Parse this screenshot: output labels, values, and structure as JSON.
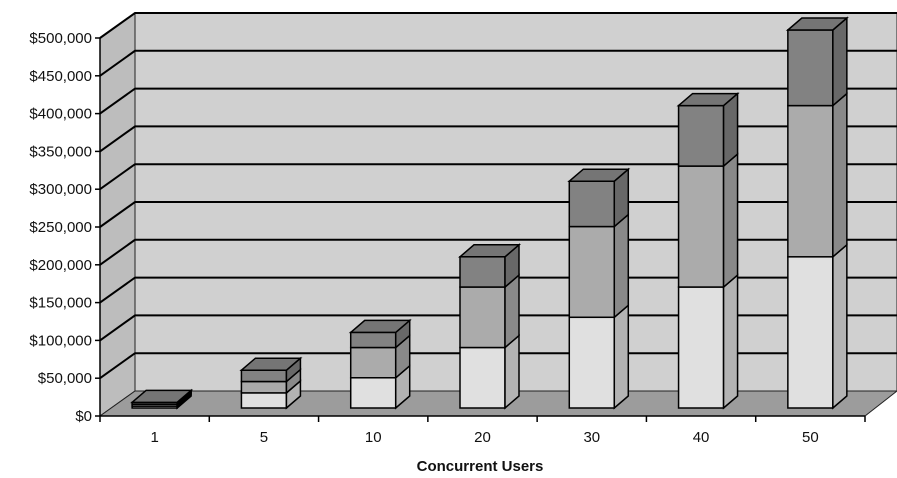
{
  "chart_data": {
    "type": "bar",
    "stacked": true,
    "three_d": true,
    "categories": [
      "1",
      "5",
      "10",
      "20",
      "30",
      "40",
      "50"
    ],
    "series": [
      {
        "values": [
          2500,
          20000,
          40000,
          80000,
          120000,
          160000,
          200000
        ],
        "color": "#e0e0e0"
      },
      {
        "values": [
          2500,
          15000,
          40000,
          80000,
          120000,
          160000,
          200000
        ],
        "color": "#ababab"
      },
      {
        "values": [
          2500,
          15000,
          20000,
          40000,
          60000,
          80000,
          100000
        ],
        "color": "#828282"
      }
    ],
    "xlabel": "Concurrent Users",
    "ylabel": "",
    "ylim": [
      0,
      500000
    ],
    "y_tick_step": 50000,
    "y_tick_labels": [
      "$0",
      "$50,000",
      "$100,000",
      "$150,000",
      "$200,000",
      "$250,000",
      "$300,000",
      "$350,000",
      "$400,000",
      "$450,000",
      "$500,000"
    ],
    "grid": true,
    "legend": "none",
    "colors": {
      "wall": "#d0d0d0",
      "floor": "#9c9c9c",
      "gridline": "#000000"
    }
  }
}
